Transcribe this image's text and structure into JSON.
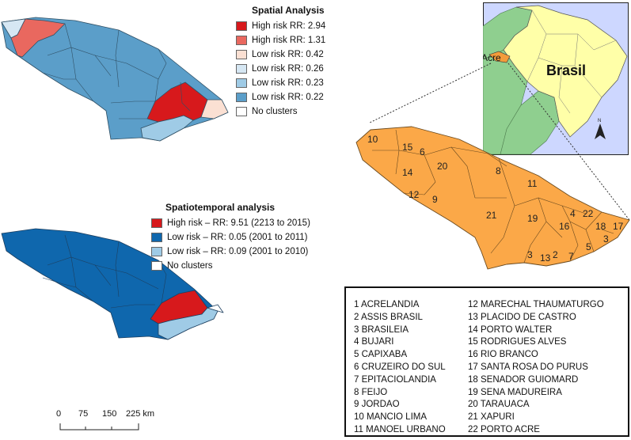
{
  "spatial_analysis": {
    "title": "Spatial Analysis",
    "legend": [
      {
        "label": "High risk RR: 2.94",
        "color": "#d7191c"
      },
      {
        "label": "High risk RR: 1.31",
        "color": "#e9685f"
      },
      {
        "label": "Low risk RR: 0.42",
        "color": "#fbe0d3"
      },
      {
        "label": "Low risk RR: 0.26",
        "color": "#d6e7f3"
      },
      {
        "label": "Low risk RR: 0.23",
        "color": "#9fcbe6"
      },
      {
        "label": "Low risk RR: 0.22",
        "color": "#5b9ec9"
      },
      {
        "label": "No clusters",
        "color": "#ffffff"
      }
    ]
  },
  "spatiotemporal_analysis": {
    "title": "Spatiotemporal analysis",
    "legend": [
      {
        "label": "High risk – RR: 9.51 (2213 to 2015)",
        "color": "#d7191c"
      },
      {
        "label": "Low risk – RR: 0.05 (2001 to 2011)",
        "color": "#0f67ad"
      },
      {
        "label": "Low risk – RR: 0.09 (2001 to 2010)",
        "color": "#9fcbe6"
      },
      {
        "label": "No clusters",
        "color": "#ffffff"
      }
    ]
  },
  "inset": {
    "acre_label": "Acre",
    "brasil_label": "Brasil",
    "north_arrow": "N"
  },
  "scale_bar": {
    "ticks": [
      "0",
      "75",
      "150",
      "225 km"
    ]
  },
  "map_numbers": [
    "10",
    "15",
    "6",
    "14",
    "20",
    "8",
    "12",
    "9",
    "11",
    "21",
    "19",
    "4",
    "22",
    "16",
    "18",
    "17",
    "5",
    "3",
    "2",
    "7",
    "13",
    "3"
  ],
  "municipalities": [
    "1 ACRELANDIA",
    "2 ASSIS BRASIL",
    "3 BRASILEIA",
    "4 BUJARI",
    "5 CAPIXABA",
    "6 CRUZEIRO DO SUL",
    "7 EPITACIOLANDIA",
    "8 FEIJO",
    "9 JORDAO",
    "10 MANCIO LIMA",
    "11 MANOEL URBANO",
    "12 MARECHAL THAUMATURGO",
    "13 PLACIDO DE CASTRO",
    "14 PORTO WALTER",
    "15 RODRIGUES ALVES",
    "16 RIO BRANCO",
    "17 SANTA ROSA DO PURUS",
    "18 SENADOR GUIOMARD",
    "19 SENA MADUREIRA",
    "20 TARAUACA",
    "21 XAPURI",
    "22 PORTO ACRE"
  ]
}
